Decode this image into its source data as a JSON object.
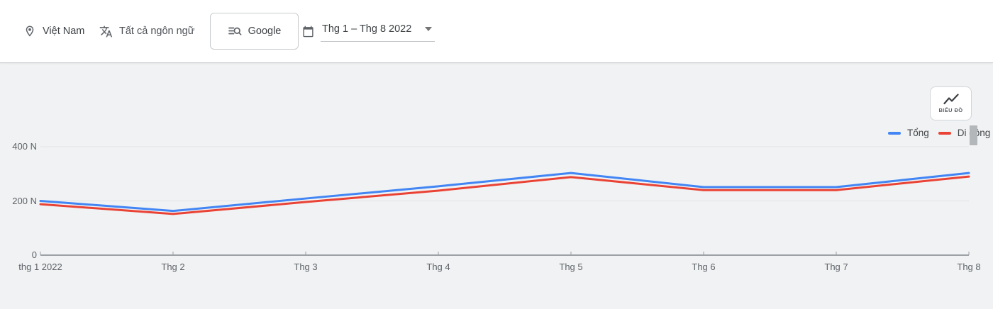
{
  "header": {
    "location": {
      "icon": "location-pin",
      "label": "Việt Nam"
    },
    "language": {
      "icon": "translate",
      "label": "Tất cả ngôn ngữ"
    },
    "source": {
      "icon": "search-lines",
      "label": "Google"
    },
    "date_range": {
      "icon": "calendar",
      "label": "Thg 1 – Thg 8 2022"
    }
  },
  "chart_toolbar": {
    "chart_type_label": "BIỂU ĐỒ",
    "chart_type_icon": "line-chart"
  },
  "colors": {
    "total_line": "#4285f4",
    "mobile_line": "#ea4335",
    "chart_background": "#f0f2f3",
    "header_background": "#ffffff",
    "axis_line": "#81868b",
    "gridline": "#e2e4e7",
    "axis_text": "#5f6368"
  },
  "chart_data": {
    "type": "line",
    "categories": [
      "thg 1 2022",
      "Thg 2",
      "Thg 3",
      "Thg 4",
      "Thg 5",
      "Thg 6",
      "Thg 7",
      "Thg 8"
    ],
    "series": [
      {
        "name": "Tổng",
        "color": "#4285f4",
        "values": [
          200,
          163,
          209,
          254,
          303,
          251,
          251,
          303
        ]
      },
      {
        "name": "Di động",
        "color": "#ea4335",
        "values": [
          188,
          152,
          196,
          238,
          288,
          240,
          240,
          290
        ]
      }
    ],
    "title": "",
    "xlabel": "",
    "ylabel": "",
    "ylim": [
      0,
      400
    ],
    "y_ticks": [
      {
        "value": 0,
        "label": "0"
      },
      {
        "value": 200,
        "label": "200 N"
      },
      {
        "value": 400,
        "label": "400 N"
      }
    ],
    "grid": true,
    "legend_position": "top-right"
  }
}
